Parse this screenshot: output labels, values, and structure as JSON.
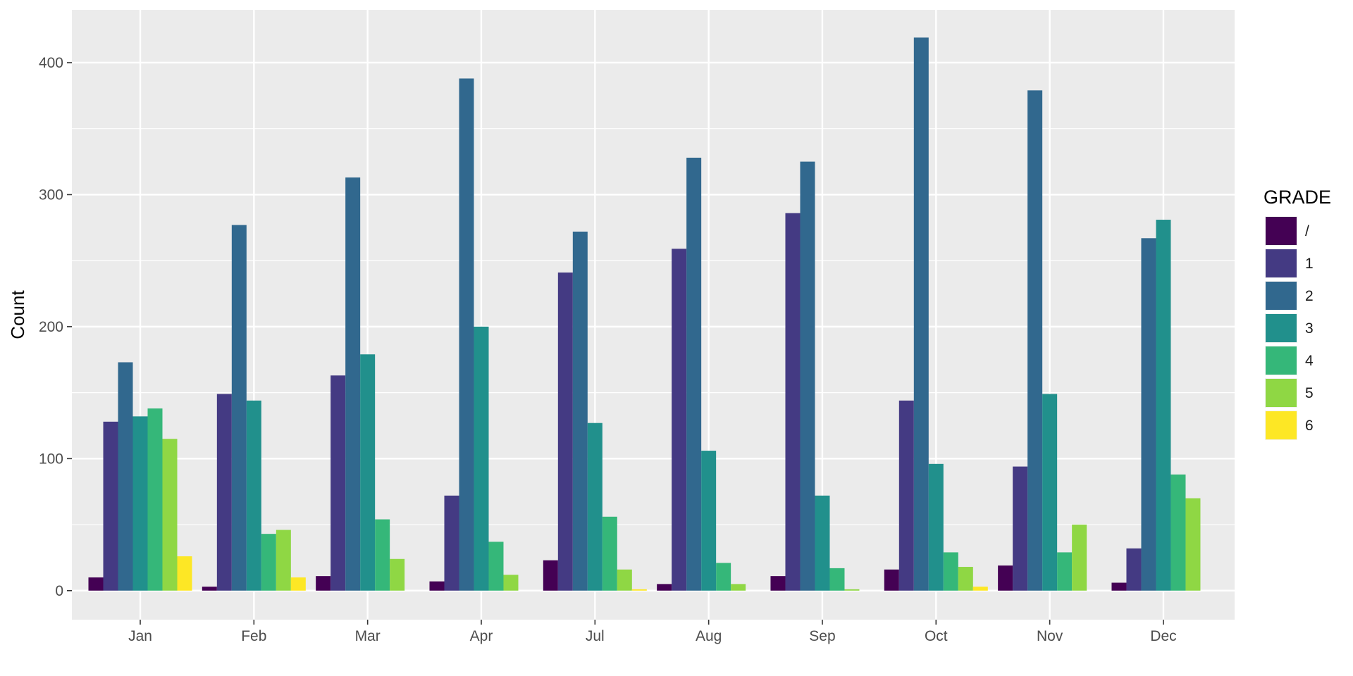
{
  "chart_data": {
    "type": "bar",
    "title": "",
    "xlabel": "",
    "ylabel": "Count",
    "ylim": [
      -22,
      440
    ],
    "yticks": [
      0,
      100,
      200,
      300,
      400
    ],
    "grid": true,
    "legend": {
      "title": "GRADE",
      "position": "right"
    },
    "categories": [
      "Jan",
      "Feb",
      "Mar",
      "Apr",
      "Jul",
      "Aug",
      "Sep",
      "Oct",
      "Nov",
      "Dec"
    ],
    "series": [
      {
        "name": "/",
        "color": "#440154",
        "values": [
          10,
          3,
          11,
          7,
          23,
          5,
          11,
          16,
          19,
          6
        ]
      },
      {
        "name": "1",
        "color": "#443A83",
        "values": [
          128,
          149,
          163,
          72,
          241,
          259,
          286,
          144,
          94,
          32
        ]
      },
      {
        "name": "2",
        "color": "#31688E",
        "values": [
          173,
          277,
          313,
          388,
          272,
          328,
          325,
          419,
          379,
          267
        ]
      },
      {
        "name": "3",
        "color": "#21908C",
        "values": [
          132,
          144,
          179,
          200,
          127,
          106,
          72,
          96,
          149,
          281
        ]
      },
      {
        "name": "4",
        "color": "#35B779",
        "values": [
          138,
          43,
          54,
          37,
          56,
          21,
          17,
          29,
          29,
          88
        ]
      },
      {
        "name": "5",
        "color": "#8FD744",
        "values": [
          115,
          46,
          24,
          12,
          16,
          5,
          1,
          18,
          50,
          70
        ]
      },
      {
        "name": "6",
        "color": "#FDE725",
        "values": [
          26,
          10,
          null,
          null,
          1,
          null,
          null,
          3,
          null,
          null
        ]
      }
    ]
  }
}
